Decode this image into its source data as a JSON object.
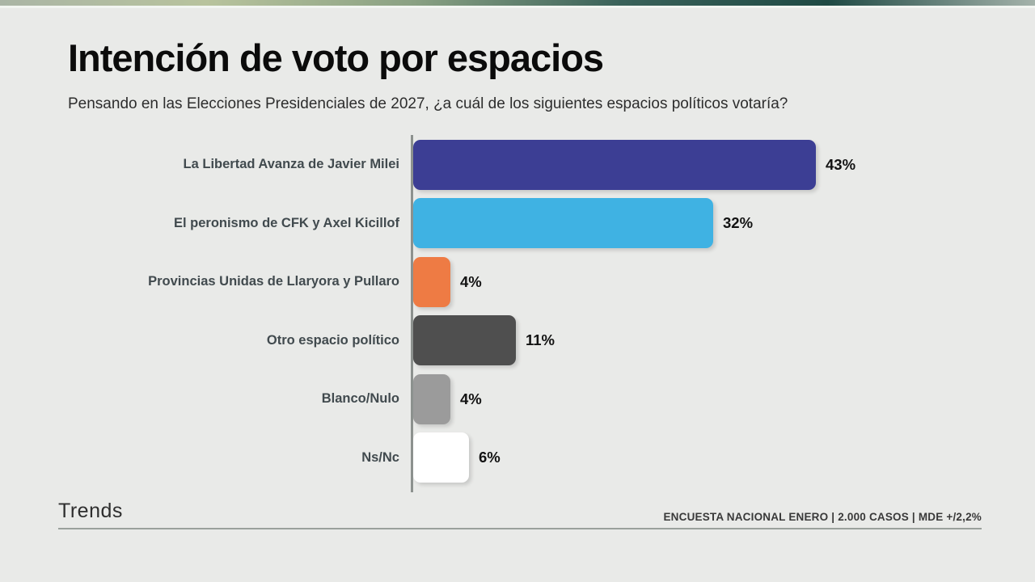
{
  "header": {
    "title": "Intención de voto por espacios",
    "subtitle": "Pensando en las Elecciones Presidenciales de 2027, ¿a cuál de los siguientes espacios políticos votaría?"
  },
  "chart_data": {
    "type": "bar",
    "orientation": "horizontal",
    "title": "Intención de voto por espacios",
    "subtitle": "Pensando en las Elecciones Presidenciales de 2027, ¿a cuál de los siguientes espacios políticos votaría?",
    "categories": [
      "La Libertad Avanza de Javier Milei",
      "El peronismo de CFK y Axel Kicillof",
      "Provincias Unidas de Llaryora y Pullaro",
      "Otro espacio político",
      "Blanco/Nulo",
      "Ns/Nc"
    ],
    "values": [
      43,
      32,
      4,
      11,
      4,
      6
    ],
    "value_labels": [
      "43%",
      "32%",
      "4%",
      "11%",
      "4%",
      "6%"
    ],
    "colors": [
      "#3c3e94",
      "#3fb2e3",
      "#ee7b44",
      "#4f4f4f",
      "#9b9b9b",
      "#ffffff"
    ],
    "xlim": [
      0,
      60
    ],
    "grid": false,
    "legend": false,
    "bar_label_position": "outside-right"
  },
  "footer": {
    "brand": "Trends",
    "source": "ENCUESTA NACIONAL ENERO | 2.000 CASOS | MDE +/2,2%"
  },
  "theme": {
    "background": "#e9eae8",
    "top_strip_gradient": [
      "#aab5a5",
      "#b8c39d",
      "#8aa183",
      "#3a625a",
      "#1f4a44",
      "#a5b3ab"
    ],
    "axis_color": "#8c918e",
    "category_label_color": "#414a4e",
    "value_label_color": "#121212"
  }
}
